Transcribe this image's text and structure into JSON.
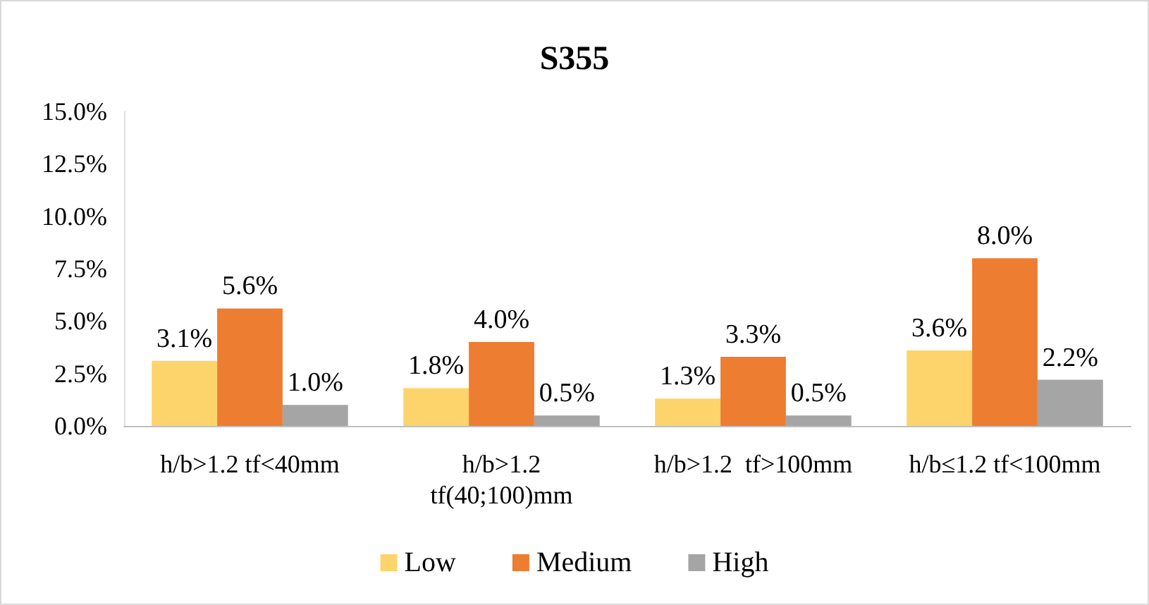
{
  "chart_data": {
    "type": "bar",
    "title": "S355",
    "categories": [
      "h/b>1.2 tf<40mm",
      "h/b>1.2\ntf(40;100)mm",
      "h/b>1.2  tf>100mm",
      "h/b≤1.2 tf<100mm"
    ],
    "series": [
      {
        "name": "Low",
        "color": "#fcd46b",
        "values": [
          3.1,
          1.8,
          1.3,
          3.6
        ],
        "value_labels": [
          "3.1%",
          "1.8%",
          "1.3%",
          "3.6%"
        ]
      },
      {
        "name": "Medium",
        "color": "#ed7d31",
        "values": [
          5.6,
          4.0,
          3.3,
          8.0
        ],
        "value_labels": [
          "5.6%",
          "4.0%",
          "3.3%",
          "8.0%"
        ]
      },
      {
        "name": "High",
        "color": "#a5a5a5",
        "values": [
          1.0,
          0.5,
          0.5,
          2.2
        ],
        "value_labels": [
          "1.0%",
          "0.5%",
          "0.5%",
          "2.2%"
        ]
      }
    ],
    "ylim": [
      0,
      15
    ],
    "yticks": [
      {
        "value": 0,
        "label": "0.0%"
      },
      {
        "value": 2.5,
        "label": "2.5%"
      },
      {
        "value": 5,
        "label": "5.0%"
      },
      {
        "value": 7.5,
        "label": "7.5%"
      },
      {
        "value": 10,
        "label": "10.0%"
      },
      {
        "value": 12.5,
        "label": "12.5%"
      },
      {
        "value": 15,
        "label": "15.0%"
      }
    ],
    "grid": false,
    "legend": "bottom"
  }
}
